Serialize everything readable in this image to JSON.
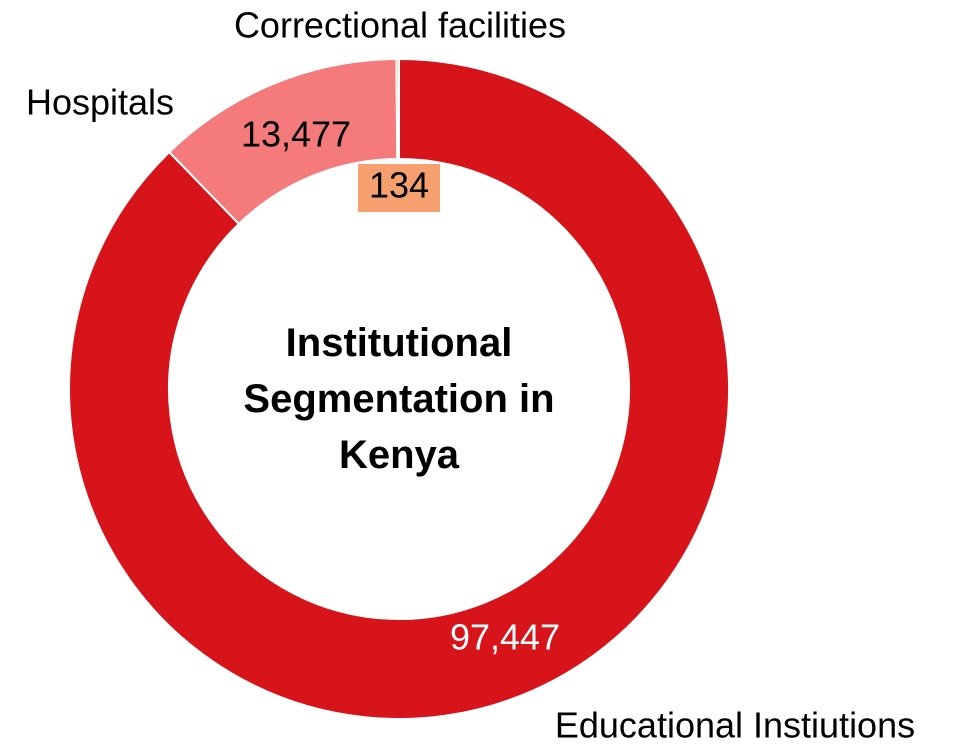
{
  "chart_data": {
    "type": "donut",
    "title": "Institutional Segmentation in Kenya",
    "categories": [
      "Educational Instiutions",
      "Hospitals",
      "Correctional facilities"
    ],
    "values": [
      97447,
      13477,
      134
    ],
    "value_labels": [
      "97,447",
      "13,477",
      "134"
    ],
    "colors": [
      "#d7141a",
      "#f47a7b",
      "#f5a06e"
    ]
  }
}
